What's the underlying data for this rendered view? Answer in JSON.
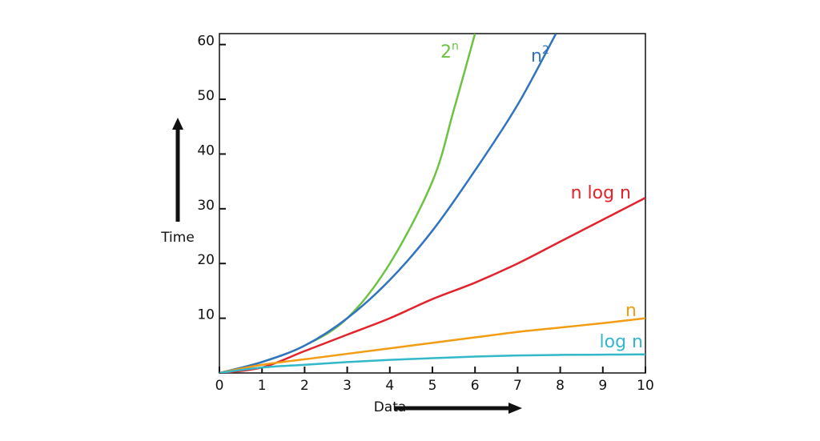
{
  "chart_data": {
    "type": "line",
    "title": "",
    "xlabel": "Data",
    "ylabel": "Time",
    "xlim": [
      0,
      10
    ],
    "ylim": [
      0,
      62
    ],
    "x_ticks": [
      "0",
      "1",
      "2",
      "3",
      "4",
      "5",
      "6",
      "7",
      "8",
      "9",
      "10"
    ],
    "y_ticks": [
      "10",
      "20",
      "30",
      "40",
      "50",
      "60"
    ],
    "grid": false,
    "series": [
      {
        "name": "2n",
        "label_base": "2",
        "label_sup": "n",
        "color": "#6cc241",
        "x": [
          0,
          1,
          2,
          3,
          4,
          5,
          5.5,
          6
        ],
        "y": [
          0,
          2,
          5,
          10,
          20,
          35,
          48,
          62
        ]
      },
      {
        "name": "n2",
        "label_base": "n",
        "label_sup": "2",
        "color": "#2f73c1",
        "x": [
          0,
          1,
          2,
          3,
          4,
          5,
          6,
          7,
          7.9
        ],
        "y": [
          0,
          2,
          5,
          10,
          17,
          26,
          37,
          49,
          62
        ]
      },
      {
        "name": "n log n",
        "label_base": "n log n",
        "label_sup": "",
        "color": "#e2232c",
        "x": [
          0,
          1,
          2,
          3,
          4,
          5,
          6,
          7,
          8,
          9,
          10
        ],
        "y": [
          0,
          1,
          4,
          7,
          10,
          13.5,
          16.5,
          20,
          24,
          28,
          32
        ]
      },
      {
        "name": "n",
        "label_base": "n",
        "label_sup": "",
        "color": "#f39c12",
        "x": [
          0,
          1,
          2,
          3,
          4,
          5,
          6,
          7,
          8,
          9,
          10
        ],
        "y": [
          0,
          1.5,
          2.5,
          3.5,
          4.5,
          5.5,
          6.5,
          7.5,
          8.3,
          9.1,
          10
        ]
      },
      {
        "name": "log n",
        "label_base": "log n",
        "label_sup": "",
        "color": "#32b8c9",
        "x": [
          0,
          1,
          2,
          3,
          4,
          5,
          6,
          7,
          8,
          9,
          10
        ],
        "y": [
          0,
          1,
          1.5,
          2,
          2.4,
          2.7,
          3,
          3.2,
          3.3,
          3.35,
          3.4
        ]
      }
    ]
  }
}
